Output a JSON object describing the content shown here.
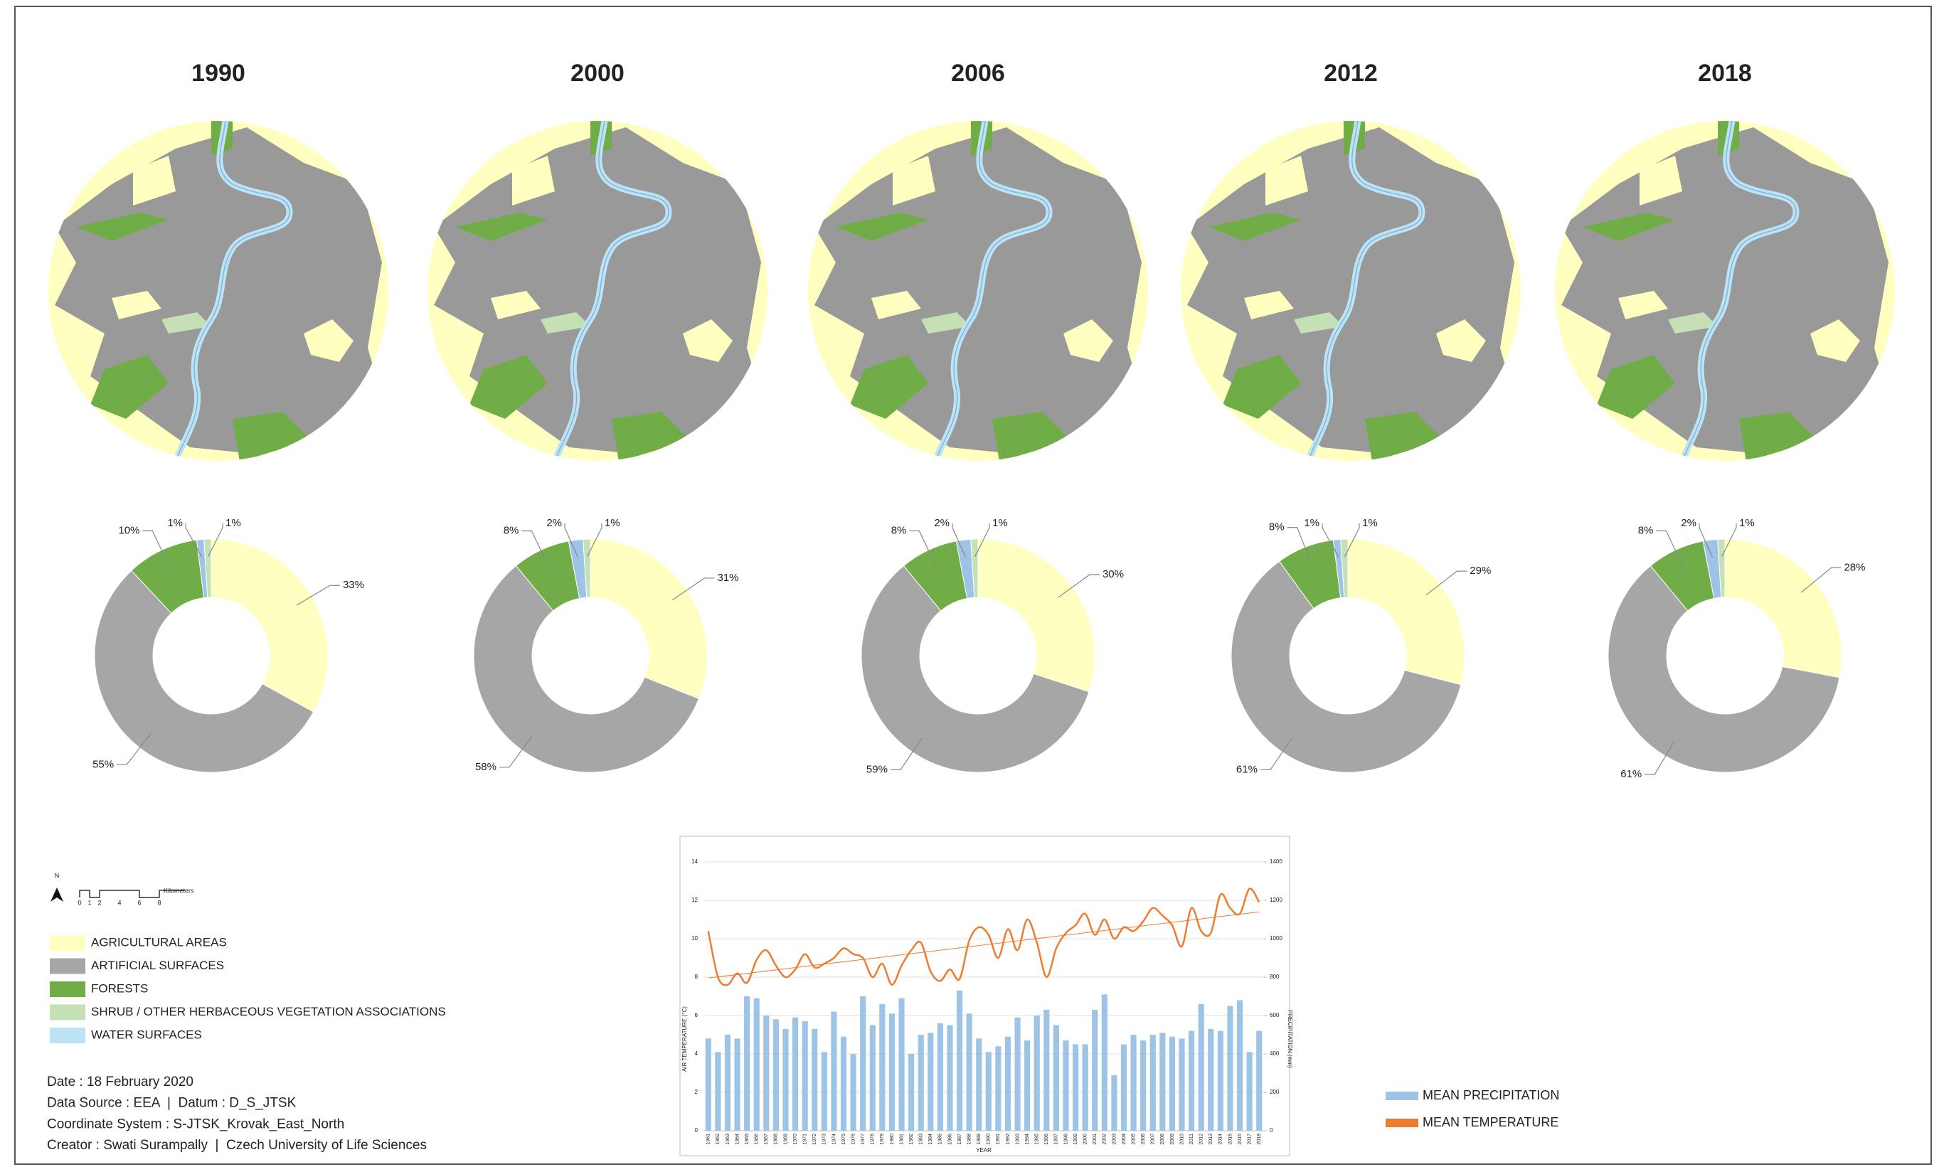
{
  "maps": [
    {
      "title": "1990"
    },
    {
      "title": "2000"
    },
    {
      "title": "2006"
    },
    {
      "title": "2012"
    },
    {
      "title": "2018"
    }
  ],
  "chart_data": [
    {
      "type": "donut",
      "values": [
        33,
        55,
        10,
        1,
        1
      ],
      "value_labels": [
        "33%",
        "55%",
        "10%",
        "1%",
        "1%"
      ],
      "colors": [
        "#ffffc0",
        "#a6a6a6",
        "#70ad47",
        "#9dc3e6",
        "#c5e0b4"
      ]
    },
    {
      "type": "donut",
      "values": [
        31,
        58,
        8,
        2,
        1
      ],
      "value_labels": [
        "31%",
        "58%",
        "8%",
        "2%",
        "1%"
      ],
      "colors": [
        "#ffffc0",
        "#a6a6a6",
        "#70ad47",
        "#9dc3e6",
        "#c5e0b4"
      ]
    },
    {
      "type": "donut",
      "values": [
        30,
        59,
        8,
        2,
        1
      ],
      "value_labels": [
        "30%",
        "59%",
        "8%",
        "2%",
        "1%"
      ],
      "colors": [
        "#ffffc0",
        "#a6a6a6",
        "#70ad47",
        "#9dc3e6",
        "#c5e0b4"
      ]
    },
    {
      "type": "donut",
      "values": [
        29,
        61,
        8,
        1,
        1
      ],
      "value_labels": [
        "29%",
        "61%",
        "8%",
        "1%",
        "1%"
      ],
      "colors": [
        "#ffffc0",
        "#a6a6a6",
        "#70ad47",
        "#9dc3e6",
        "#c5e0b4"
      ]
    },
    {
      "type": "donut",
      "values": [
        28,
        61,
        8,
        2,
        1
      ],
      "value_labels": [
        "28%",
        "61%",
        "8%",
        "2%",
        "1%"
      ],
      "colors": [
        "#ffffc0",
        "#a6a6a6",
        "#70ad47",
        "#9dc3e6",
        "#c5e0b4"
      ]
    },
    {
      "type": "bar_line",
      "x_label": "YEAR",
      "y_label": "AIR TEMPERATURE (°C)",
      "y2_label": "PRECIPITATION (mm)",
      "categories": [
        1961,
        1962,
        1963,
        1964,
        1965,
        1966,
        1967,
        1968,
        1969,
        1970,
        1971,
        1972,
        1973,
        1974,
        1975,
        1976,
        1977,
        1978,
        1979,
        1980,
        1981,
        1982,
        1983,
        1984,
        1985,
        1986,
        1987,
        1988,
        1989,
        1990,
        1991,
        1992,
        1993,
        1994,
        1995,
        1996,
        1997,
        1998,
        1999,
        2000,
        2001,
        2002,
        2003,
        2004,
        2005,
        2006,
        2007,
        2008,
        2009,
        2010,
        2011,
        2012,
        2013,
        2014,
        2015,
        2016,
        2017,
        2018
      ],
      "ylim": [
        0,
        14
      ],
      "yticks": [
        0,
        2,
        4,
        6,
        8,
        10,
        12,
        14
      ],
      "y2lim": [
        0,
        1400
      ],
      "y2ticks": [
        0,
        200,
        400,
        600,
        800,
        1000,
        1200,
        1400
      ],
      "grid": true,
      "trend": true,
      "series": [
        {
          "name": "MEAN PRECIPITATION",
          "type": "bar",
          "axis": "y2",
          "color": "#9dc3e6",
          "values": [
            480,
            410,
            500,
            480,
            700,
            690,
            600,
            580,
            530,
            590,
            570,
            530,
            410,
            620,
            490,
            400,
            700,
            550,
            660,
            610,
            690,
            400,
            500,
            510,
            560,
            550,
            730,
            610,
            480,
            410,
            440,
            490,
            590,
            470,
            600,
            630,
            550,
            470,
            450,
            450,
            630,
            710,
            290,
            450,
            500,
            470,
            500,
            510,
            490,
            480,
            520,
            660,
            530,
            520,
            650,
            680,
            410,
            520
          ]
        },
        {
          "name": "MEAN TEMPERATURE",
          "type": "line",
          "color": "#ed7d31",
          "values": [
            10.4,
            8.0,
            7.6,
            8.2,
            7.7,
            8.9,
            9.4,
            8.6,
            8.0,
            8.4,
            9.2,
            8.5,
            8.7,
            9.0,
            9.5,
            9.2,
            9.0,
            8.0,
            8.7,
            7.6,
            8.6,
            9.4,
            9.8,
            8.3,
            7.8,
            8.4,
            7.9,
            9.9,
            10.6,
            10.2,
            9.0,
            10.5,
            9.4,
            11.0,
            9.8,
            8.0,
            9.5,
            10.3,
            10.7,
            11.3,
            10.2,
            11.0,
            10.0,
            10.6,
            10.4,
            10.9,
            11.6,
            11.2,
            10.7,
            9.6,
            11.6,
            10.4,
            10.3,
            12.3,
            11.6,
            11.3,
            12.6,
            11.9
          ]
        }
      ]
    }
  ],
  "legend": {
    "items": [
      {
        "label": "AGRICULTURAL AREAS",
        "color": "#ffffc0"
      },
      {
        "label": "ARTIFICIAL SURFACES",
        "color": "#a6a6a6"
      },
      {
        "label": "FORESTS",
        "color": "#70ad47"
      },
      {
        "label": "SHRUB / OTHER HERBACEOUS VEGETATION ASSOCIATIONS",
        "color": "#c5e0b4"
      },
      {
        "label": "WATER SURFACES",
        "color": "#bde3f7"
      }
    ]
  },
  "scale_bar": {
    "north": "N",
    "ticks": [
      "0",
      "1",
      "2",
      "4",
      "6",
      "8"
    ],
    "unit": "Kilometers"
  },
  "metadata": [
    "Date : 18 February 2020",
    "Data Source : EEA  |  Datum : D_S_JTSK",
    "Coordinate System : S-JTSK_Krovak_East_North",
    "Creator : Swati Surampally  |  Czech University of Life Sciences"
  ]
}
